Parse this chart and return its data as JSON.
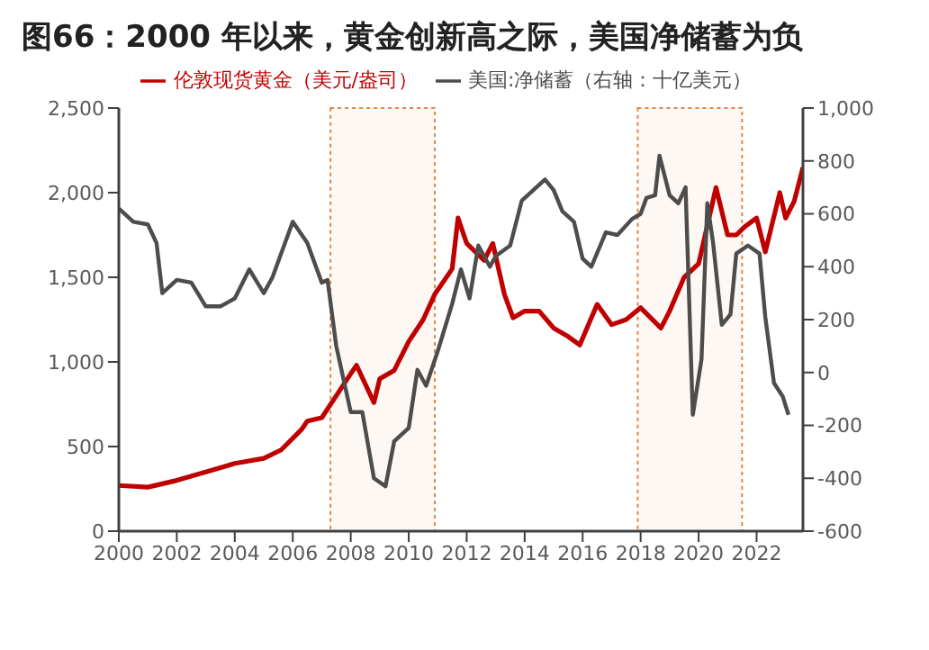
{
  "chart_data": {
    "type": "line",
    "title": "图66：2000 年以来，黄金创新高之际，美国净储蓄为负",
    "xlim": [
      2000,
      2023.6
    ],
    "xticks": [
      2000,
      2002,
      2004,
      2006,
      2008,
      2010,
      2012,
      2014,
      2016,
      2018,
      2020,
      2022
    ],
    "ylim": [
      0,
      2500
    ],
    "yticks": [
      0,
      500,
      {
        "value": 1000,
        "label": "1,000"
      },
      {
        "value": 1500,
        "label": "1,500"
      },
      {
        "value": 2000,
        "label": "2,000"
      },
      {
        "value": 2500,
        "label": "2,500"
      }
    ],
    "y2lim": [
      -600,
      1000
    ],
    "y2ticks": [
      -600,
      -400,
      -200,
      0,
      200,
      400,
      600,
      800,
      {
        "value": 1000,
        "label": "1,000"
      }
    ],
    "legend": "top",
    "grid": false,
    "bands": [
      {
        "axis": "x",
        "from": 2007.3,
        "to": 2010.9,
        "label": null,
        "color": "#e0884a"
      },
      {
        "axis": "x",
        "from": 2017.9,
        "to": 2021.5,
        "label": null,
        "color": "#e0884a"
      }
    ],
    "series": [
      {
        "name": "伦敦现货黄金（美元/盎司）",
        "color": "#c00000",
        "x": [
          2000,
          2001,
          2002,
          2003,
          2004,
          2005,
          2005.6,
          2006.3,
          2006.5,
          2007,
          2007.5,
          2008,
          2008.2,
          2008.8,
          2009,
          2009.5,
          2010,
          2010.5,
          2010.9,
          2011.5,
          2011.7,
          2012,
          2012.6,
          2012.9,
          2013.3,
          2013.6,
          2014,
          2014.5,
          2015,
          2015.5,
          2015.9,
          2016.5,
          2017,
          2017.5,
          2018,
          2018.7,
          2019,
          2019.5,
          2020,
          2020.6,
          2021,
          2021.3,
          2021.6,
          2022,
          2022.3,
          2022.8,
          2023,
          2023.3,
          2023.6
        ],
        "values": [
          270,
          260,
          300,
          350,
          400,
          430,
          480,
          600,
          650,
          670,
          800,
          930,
          980,
          760,
          900,
          950,
          1120,
          1250,
          1400,
          1550,
          1850,
          1700,
          1600,
          1700,
          1400,
          1260,
          1300,
          1300,
          1200,
          1150,
          1100,
          1340,
          1220,
          1250,
          1320,
          1200,
          1300,
          1500,
          1580,
          2030,
          1750,
          1750,
          1800,
          1850,
          1650,
          2000,
          1850,
          1950,
          2150
        ]
      },
      {
        "name": "美国:净储蓄（右轴：十亿美元）",
        "color": "#4d4d4d",
        "axis": "y2",
        "x": [
          2000,
          2000.5,
          2001,
          2001.3,
          2001.5,
          2002,
          2002.5,
          2003,
          2003.5,
          2004,
          2004.5,
          2005,
          2005.3,
          2006,
          2006.5,
          2007,
          2007.2,
          2007.5,
          2008,
          2008.4,
          2008.8,
          2009.2,
          2009.5,
          2010,
          2010.3,
          2010.6,
          2011,
          2011.5,
          2011.8,
          2012.1,
          2012.4,
          2012.8,
          2013,
          2013.5,
          2013.9,
          2014.3,
          2014.7,
          2015,
          2015.3,
          2015.7,
          2016,
          2016.3,
          2016.8,
          2017.2,
          2017.7,
          2018,
          2018.2,
          2018.5,
          2018.65,
          2019,
          2019.3,
          2019.55,
          2019.8,
          2020.1,
          2020.3,
          2020.5,
          2020.8,
          2021.1,
          2021.3,
          2021.7,
          2022.1,
          2022.3,
          2022.6,
          2022.9,
          2023.1
        ],
        "values": [
          620,
          570,
          560,
          490,
          300,
          350,
          340,
          250,
          250,
          280,
          390,
          300,
          360,
          570,
          490,
          340,
          350,
          100,
          -150,
          -150,
          -400,
          -430,
          -260,
          -210,
          10,
          -50,
          80,
          260,
          390,
          280,
          480,
          400,
          440,
          480,
          650,
          690,
          730,
          690,
          610,
          570,
          430,
          400,
          530,
          520,
          580,
          600,
          660,
          670,
          820,
          670,
          640,
          700,
          -160,
          50,
          640,
          490,
          180,
          220,
          450,
          480,
          450,
          210,
          -40,
          -90,
          -160
        ]
      }
    ]
  }
}
